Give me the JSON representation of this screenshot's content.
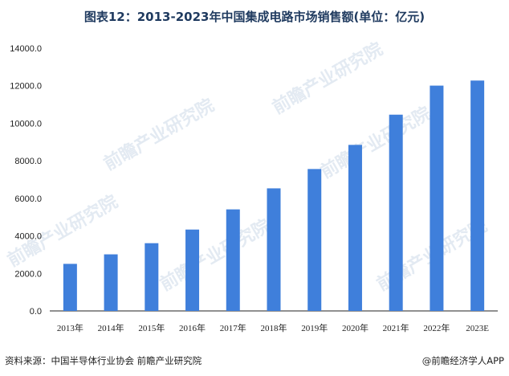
{
  "title": "图表12：2013-2023年中国集成电路市场销售额(单位：亿元)",
  "source": "资料来源：中国半导体行业协会 前瞻产业研究院",
  "credit": "@前瞻经济学人APP",
  "watermark": "前瞻产业研究院",
  "colors": {
    "bar": "#3f7fdb",
    "axis": "#222222"
  },
  "chart_data": {
    "type": "bar",
    "title": "图表12：2013-2023年中国集成电路市场销售额(单位：亿元)",
    "xlabel": "",
    "ylabel": "",
    "categories": [
      "2013年",
      "2014年",
      "2015年",
      "2016年",
      "2017年",
      "2018年",
      "2019年",
      "2020年",
      "2021年",
      "2022年",
      "2023E"
    ],
    "values": [
      2508,
      3015,
      3610,
      4336,
      5411,
      6532,
      7562,
      8848,
      10458,
      12006,
      12276
    ],
    "ylim": [
      0,
      14000
    ],
    "yticks": [
      "0.0",
      "2000.0",
      "4000.0",
      "6000.0",
      "8000.0",
      "10000.0",
      "12000.0",
      "14000.0"
    ],
    "grid": false,
    "legend": "none"
  }
}
